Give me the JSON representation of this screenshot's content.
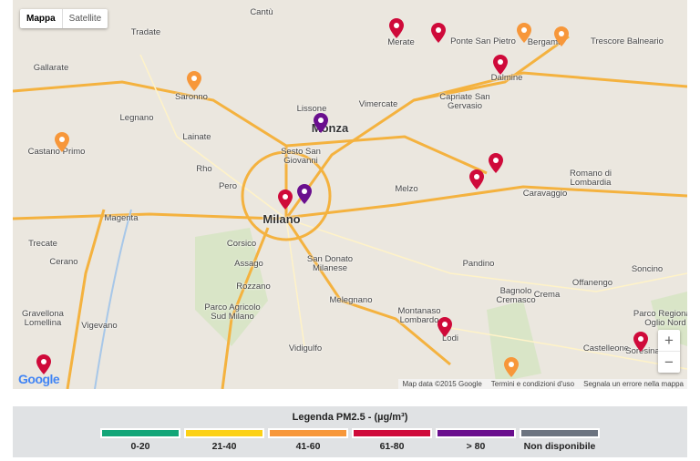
{
  "map": {
    "type_buttons": [
      "Mappa",
      "Satellite"
    ],
    "selected_type": "Mappa",
    "zoom_in": "+",
    "zoom_out": "−",
    "logo": "Google",
    "attribution": [
      "Map data ©2015 Google",
      "Termini e condizioni d'uso",
      "Segnala un errore nella mappa"
    ],
    "places": [
      "Cantù",
      "Tradate",
      "Merate",
      "Ponte San Pietro",
      "Bergamo",
      "Trescore Balneario",
      "Gallarate",
      "Saronno",
      "Dalmine",
      "Legnano",
      "Lissone",
      "Vimercate",
      "Capriate San Gervasio",
      "Monza",
      "Lainate",
      "Sesto San Giovanni",
      "Castano Primo",
      "Rho",
      "Melzo",
      "Caravaggio",
      "Romano di Lombardia",
      "Pero",
      "Milano",
      "Magenta",
      "Trecate",
      "Corsico",
      "Cerano",
      "Assago",
      "San Donato Milanese",
      "Pandino",
      "Soncino",
      "Rozzano",
      "Bagnolo Cremasco",
      "Crema",
      "Offanengo",
      "Parco Agricolo Sud Milano",
      "Gravellona Lomellina",
      "Vigevano",
      "Melegnano",
      "Montanaso Lombardo",
      "Lodi",
      "Castelleone",
      "Soresina",
      "Vidigulfo",
      "Parco Regionale Oglio Nord"
    ],
    "stations": [
      "61-80",
      "61-80",
      "61-80",
      "41-60",
      "41-60",
      "41-60",
      "> 80",
      "41-60",
      "61-80",
      "61-80",
      "61-80",
      "> 80",
      "61-80",
      "61-80",
      "61-80",
      "41-60"
    ]
  },
  "legend": {
    "title": "Legenda PM2.5 - (µg/m³)",
    "items": [
      {
        "label": "0-20",
        "color": "#13a678"
      },
      {
        "label": "21-40",
        "color": "#fcd116"
      },
      {
        "label": "41-60",
        "color": "#f7973a"
      },
      {
        "label": "61-80",
        "color": "#cf0a3a"
      },
      {
        "label": "> 80",
        "color": "#6a0f8e"
      },
      {
        "label": "Non disponibile",
        "color": "#6c7480"
      }
    ]
  }
}
